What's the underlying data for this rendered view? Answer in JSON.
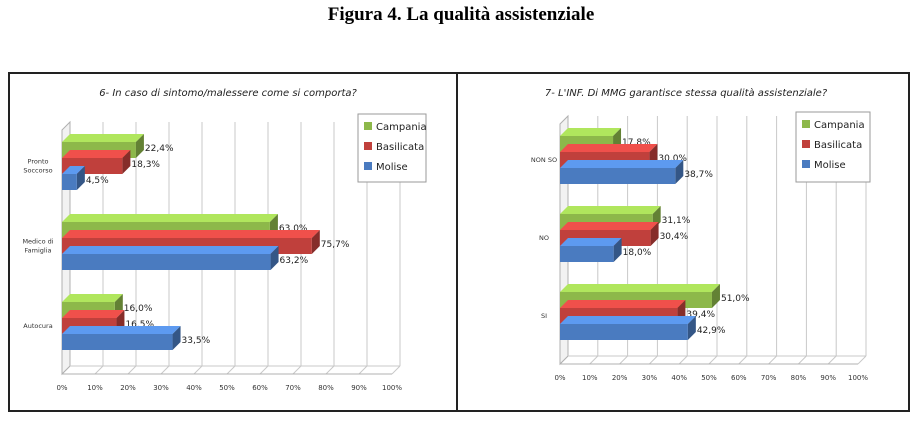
{
  "figure_title": "Figura 4. La qualità assistenziale",
  "colors": {
    "Campania": "#8DB84A",
    "Basilicata": "#C0403C",
    "Molise": "#4A7BC0"
  },
  "chart_data": [
    {
      "type": "bar",
      "orientation": "horizontal",
      "title": "6- In caso di sintomo/malessere come si comporta?",
      "categories": [
        "Pronto Soccorso",
        "Medico di Famiglia",
        "Autocura"
      ],
      "category_lines": [
        [
          "Pronto",
          "Soccorso"
        ],
        [
          "Medico di",
          "Famiglia"
        ],
        [
          "Autocura"
        ]
      ],
      "series": [
        {
          "name": "Campania",
          "values": [
            22.4,
            63.0,
            16.0
          ],
          "labels": [
            "22,4%",
            "63,0%",
            "16,0%"
          ]
        },
        {
          "name": "Basilicata",
          "values": [
            18.3,
            75.7,
            16.5
          ],
          "labels": [
            "18,3%",
            "75,7%",
            "16,5%"
          ]
        },
        {
          "name": "Molise",
          "values": [
            4.5,
            63.2,
            33.5
          ],
          "labels": [
            "4,5%",
            "63,2%",
            "33,5%"
          ]
        }
      ],
      "xlim": [
        0,
        100
      ],
      "x_ticks": [
        "0%",
        "10%",
        "20%",
        "30%",
        "40%",
        "50%",
        "60%",
        "70%",
        "80%",
        "90%",
        "100%"
      ],
      "grid": true,
      "legend": "top-right"
    },
    {
      "type": "bar",
      "orientation": "horizontal",
      "title": "7- L'INF. Di MMG garantisce stessa qualità assistenziale?",
      "categories": [
        "NON SO",
        "NO",
        "SI"
      ],
      "category_lines": [
        [
          "NON SO"
        ],
        [
          "NO"
        ],
        [
          "SI"
        ]
      ],
      "series": [
        {
          "name": "Campania",
          "values": [
            17.8,
            31.1,
            51.0
          ],
          "labels": [
            "17,8%",
            "31,1%",
            "51,0%"
          ]
        },
        {
          "name": "Basilicata",
          "values": [
            30.0,
            30.4,
            39.4
          ],
          "labels": [
            "30,0%",
            "30,4%",
            "39,4%"
          ]
        },
        {
          "name": "Molise",
          "values": [
            38.7,
            18.0,
            42.9
          ],
          "labels": [
            "38,7%",
            "18,0%",
            "42,9%"
          ]
        }
      ],
      "xlim": [
        0,
        100
      ],
      "x_ticks": [
        "0%",
        "10%",
        "20%",
        "30%",
        "40%",
        "50%",
        "60%",
        "70%",
        "80%",
        "90%",
        "100%"
      ],
      "grid": true,
      "legend": "top-right"
    }
  ]
}
